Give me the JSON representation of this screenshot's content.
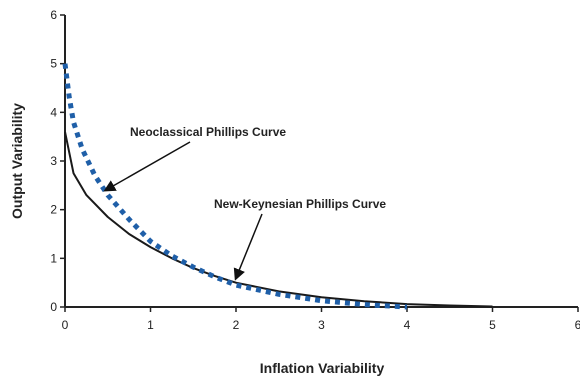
{
  "chart_data": {
    "type": "line",
    "title": "",
    "xlabel": "Inflation Variability",
    "ylabel": "Output Variability",
    "xlim": [
      0,
      6
    ],
    "ylim": [
      0,
      6
    ],
    "x_ticks": [
      "0",
      "1",
      "2",
      "3",
      "4",
      "5",
      "6"
    ],
    "y_ticks": [
      "0",
      "1",
      "2",
      "3",
      "4",
      "5",
      "6"
    ],
    "grid": false,
    "legend": "none",
    "series": [
      {
        "name": "New-Keynesian Phillips Curve",
        "style": "solid",
        "color": "#1a1a1a",
        "points": [
          [
            0,
            3.6
          ],
          [
            0.1,
            2.75
          ],
          [
            0.25,
            2.3
          ],
          [
            0.5,
            1.85
          ],
          [
            0.75,
            1.5
          ],
          [
            1,
            1.23
          ],
          [
            1.25,
            1.0
          ],
          [
            1.5,
            0.8
          ],
          [
            1.75,
            0.64
          ],
          [
            2,
            0.5
          ],
          [
            2.5,
            0.32
          ],
          [
            3,
            0.2
          ],
          [
            3.5,
            0.12
          ],
          [
            4,
            0.06
          ],
          [
            4.5,
            0.03
          ],
          [
            5,
            0.01
          ]
        ]
      },
      {
        "name": "Neoclassical Phillips Curve",
        "style": "dotted",
        "color": "#1f5fa8",
        "points": [
          [
            0,
            5.0
          ],
          [
            0.05,
            4.3
          ],
          [
            0.1,
            3.8
          ],
          [
            0.2,
            3.25
          ],
          [
            0.35,
            2.7
          ],
          [
            0.5,
            2.3
          ],
          [
            0.75,
            1.8
          ],
          [
            1,
            1.35
          ],
          [
            1.25,
            1.05
          ],
          [
            1.5,
            0.82
          ],
          [
            1.75,
            0.62
          ],
          [
            2,
            0.45
          ],
          [
            2.5,
            0.26
          ],
          [
            3,
            0.13
          ],
          [
            3.5,
            0.05
          ],
          [
            4,
            0.0
          ]
        ]
      }
    ],
    "annotations": [
      {
        "text": "Neoclassical Phillips Curve",
        "arrow_to": [
          0.45,
          2.35
        ]
      },
      {
        "text": "New-Keynesian Phillips Curve",
        "arrow_to": [
          2.0,
          0.4
        ]
      }
    ]
  }
}
